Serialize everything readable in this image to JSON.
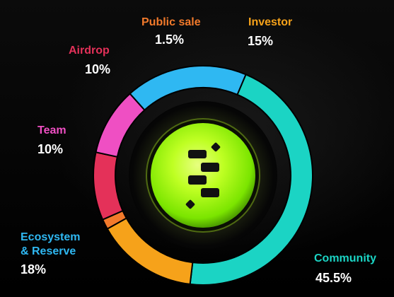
{
  "chart_data": {
    "type": "pie",
    "categories": [
      "Community",
      "Investor",
      "Public sale",
      "Airdrop",
      "Team",
      "Ecosystem & Reserve"
    ],
    "values": [
      45.5,
      15,
      1.5,
      10,
      10,
      18
    ],
    "value_labels": [
      "45.5%",
      "15%",
      "1.5%",
      "10%",
      "10%",
      "18%"
    ],
    "colors": [
      "#1bd4c4",
      "#f6a21a",
      "#f27a2b",
      "#e43159",
      "#ef4fc3",
      "#2fb8f2"
    ],
    "title": "",
    "legend": "labels around ring"
  },
  "labels": {
    "public_sale": {
      "name": "Public sale",
      "value": "1.5%"
    },
    "investor": {
      "name": "Investor",
      "value": "15%"
    },
    "airdrop": {
      "name": "Airdrop",
      "value": "10%"
    },
    "team": {
      "name": "Team",
      "value": "10%"
    },
    "ecosystem": {
      "name_line1": "Ecosystem",
      "name_line2": "& Reserve",
      "value": "18%"
    },
    "community": {
      "name": "Community",
      "value": "45.5%"
    }
  },
  "center": {
    "icon": "token-logo-icon",
    "accent": "#b9ff23"
  }
}
